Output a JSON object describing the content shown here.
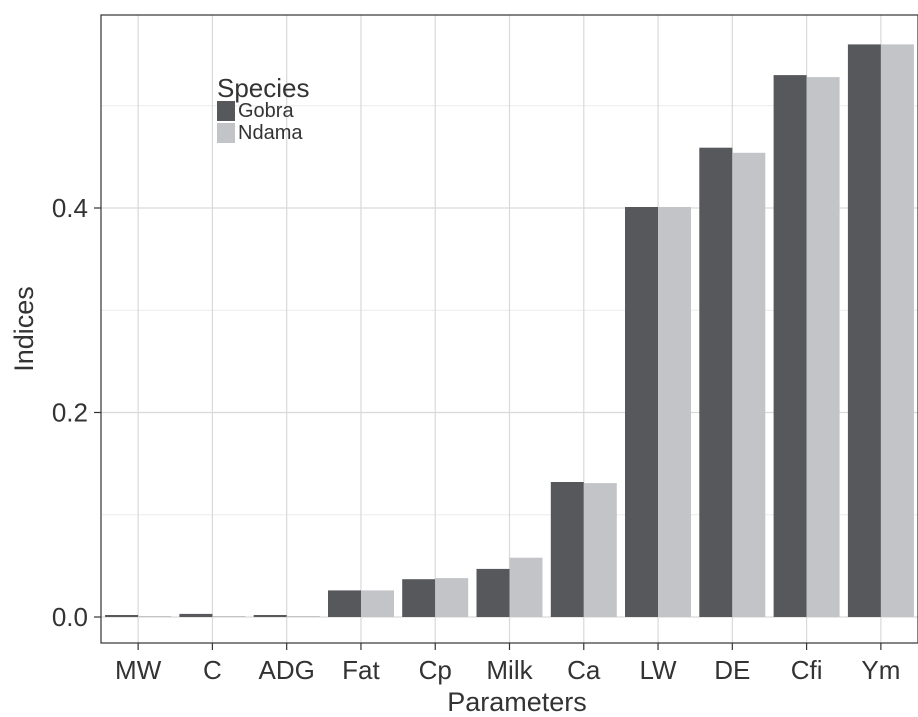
{
  "chart_data": {
    "type": "bar",
    "title": "",
    "xlabel": "Parameters",
    "ylabel": "Indices",
    "ylim": [
      -0.02,
      0.585
    ],
    "yticks": [
      0.0,
      0.2,
      0.4
    ],
    "ytick_labels": [
      "0.0",
      "0.2",
      "0.4"
    ],
    "categories": [
      "MW",
      "C",
      "ADG",
      "Fat",
      "Cp",
      "Milk",
      "Ca",
      "LW",
      "DE",
      "Cfi",
      "Ym"
    ],
    "series": [
      {
        "name": "Gobra",
        "values": [
          0.002,
          0.003,
          0.002,
          0.026,
          0.037,
          0.047,
          0.132,
          0.401,
          0.459,
          0.53,
          0.56
        ]
      },
      {
        "name": "Ndama",
        "values": [
          0.001,
          0.001,
          0.001,
          0.026,
          0.038,
          0.058,
          0.131,
          0.401,
          0.454,
          0.528,
          0.56
        ]
      }
    ],
    "grid": true,
    "legend": {
      "title": "Species",
      "position": "top-left, inside plot"
    },
    "colors": {
      "Gobra": "#57585c",
      "Ndama": "#c3c4c7"
    }
  }
}
